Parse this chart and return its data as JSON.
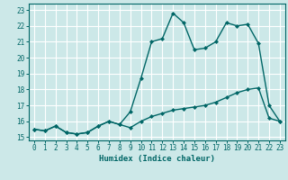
{
  "title": "",
  "xlabel": "Humidex (Indice chaleur)",
  "ylabel": "",
  "xlim": [
    -0.5,
    23.5
  ],
  "ylim": [
    14.8,
    23.4
  ],
  "yticks": [
    15,
    16,
    17,
    18,
    19,
    20,
    21,
    22,
    23
  ],
  "xticks": [
    0,
    1,
    2,
    3,
    4,
    5,
    6,
    7,
    8,
    9,
    10,
    11,
    12,
    13,
    14,
    15,
    16,
    17,
    18,
    19,
    20,
    21,
    22,
    23
  ],
  "bg_color": "#cce8e8",
  "line_color": "#006666",
  "grid_color": "#ffffff",
  "line1_x": [
    0,
    1,
    2,
    3,
    4,
    5,
    6,
    7,
    8,
    9,
    10,
    11,
    12,
    13,
    14,
    15,
    16,
    17,
    18,
    19,
    20,
    21,
    22,
    23
  ],
  "line1_y": [
    15.5,
    15.4,
    15.7,
    15.3,
    15.2,
    15.3,
    15.7,
    16.0,
    15.8,
    16.6,
    18.7,
    21.0,
    21.2,
    22.8,
    22.2,
    20.5,
    20.6,
    21.0,
    22.2,
    22.0,
    22.1,
    20.9,
    17.0,
    16.0
  ],
  "line2_x": [
    0,
    1,
    2,
    3,
    4,
    5,
    6,
    7,
    8,
    9,
    10,
    11,
    12,
    13,
    14,
    15,
    16,
    17,
    18,
    19,
    20,
    21,
    22,
    23
  ],
  "line2_y": [
    15.5,
    15.4,
    15.7,
    15.3,
    15.2,
    15.3,
    15.7,
    16.0,
    15.8,
    15.6,
    16.0,
    16.3,
    16.5,
    16.7,
    16.8,
    16.9,
    17.0,
    17.2,
    17.5,
    17.8,
    18.0,
    18.1,
    16.2,
    16.0
  ]
}
